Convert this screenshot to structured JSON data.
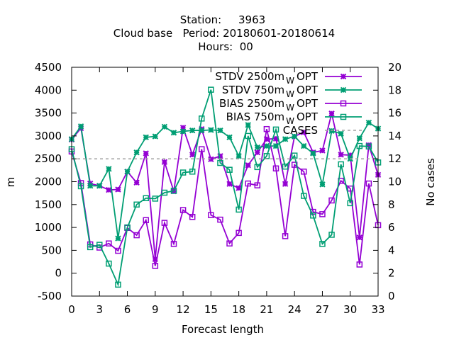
{
  "title_lines": [
    "Station:     3963",
    "Cloud base   Period: 20180601-20180614",
    "Hours:  00"
  ],
  "chart_data": {
    "type": "line",
    "xlabel": "Forecast length",
    "ylabel": "m",
    "y2label": "No cases",
    "xlim": [
      0,
      33
    ],
    "ylim": [
      -500,
      4500
    ],
    "y2lim": [
      0,
      20
    ],
    "xticks": [
      0,
      3,
      6,
      9,
      12,
      15,
      18,
      21,
      24,
      27,
      30,
      33
    ],
    "yticks": [
      -500,
      0,
      500,
      1000,
      1500,
      2000,
      2500,
      3000,
      3500,
      4000,
      4500
    ],
    "y2ticks": [
      0,
      2,
      4,
      6,
      8,
      10,
      12,
      14,
      16,
      18,
      20
    ],
    "grid": false,
    "legend_position": "top-right",
    "x": [
      0,
      1,
      2,
      3,
      4,
      5,
      6,
      7,
      8,
      9,
      10,
      11,
      12,
      13,
      14,
      15,
      16,
      17,
      18,
      19,
      20,
      21,
      22,
      23,
      24,
      25,
      26,
      27,
      28,
      29,
      30,
      31,
      32,
      33
    ],
    "series": [
      {
        "name": "STDV 2500m",
        "subscript": "W",
        "suffix": "OPT",
        "color": "#9400d3",
        "marker": "x",
        "axis": "y1",
        "values": [
          2920,
          3170,
          1960,
          1910,
          1820,
          1830,
          2220,
          1980,
          2620,
          310,
          2430,
          1790,
          3180,
          2590,
          3150,
          2490,
          2560,
          1950,
          1860,
          2360,
          2640,
          2930,
          2940,
          1950,
          2990,
          3080,
          2640,
          2680,
          3490,
          2590,
          2580,
          780,
          2800,
          2150
        ]
      },
      {
        "name": "STDV 750m",
        "subscript": "W",
        "suffix": "OPT",
        "color": "#009e73",
        "marker": "x",
        "axis": "y1",
        "values": [
          2930,
          3210,
          1910,
          1910,
          2280,
          760,
          2220,
          2640,
          2970,
          2990,
          3200,
          3070,
          3100,
          3120,
          3120,
          3130,
          3120,
          2970,
          2560,
          3240,
          2750,
          2780,
          2780,
          2930,
          2990,
          2780,
          2620,
          1940,
          3110,
          3050,
          2500,
          2950,
          3290,
          3160
        ]
      },
      {
        "name": "BIAS 2500m",
        "subscript": "W",
        "suffix": "OPT",
        "color": "#9400d3",
        "marker": "square",
        "axis": "y1",
        "values": [
          2660,
          1970,
          630,
          560,
          650,
          490,
          990,
          830,
          1160,
          160,
          1100,
          640,
          1380,
          1230,
          2710,
          1270,
          1170,
          650,
          880,
          1960,
          1920,
          3150,
          2290,
          810,
          2370,
          2220,
          1340,
          1290,
          1590,
          2020,
          1850,
          190,
          1960,
          1050
        ]
      },
      {
        "name": "BIAS 750m",
        "subscript": "W",
        "suffix": "OPT",
        "color": "#009e73",
        "marker": "square",
        "axis": "y1",
        "values": [
          2710,
          1900,
          570,
          620,
          210,
          -250,
          1000,
          1500,
          1640,
          1630,
          1760,
          1800,
          2200,
          2220,
          3380,
          4010,
          2410,
          2260,
          1390,
          3000,
          2320,
          2560,
          3140,
          2330,
          2570,
          1690,
          1260,
          640,
          840,
          2380,
          1530,
          2780,
          2770,
          2420
        ]
      },
      {
        "name": "CASES",
        "color": "#a0a0a0",
        "marker": "none",
        "dashed": true,
        "axis": "y2",
        "values": [
          12,
          12,
          12,
          12,
          12,
          12,
          12,
          12,
          12,
          12,
          12,
          12,
          12,
          12,
          12,
          12,
          12,
          12,
          12,
          12,
          12,
          12,
          12,
          12,
          12,
          12,
          12,
          12,
          12,
          12,
          12,
          12,
          12,
          12
        ]
      }
    ]
  }
}
